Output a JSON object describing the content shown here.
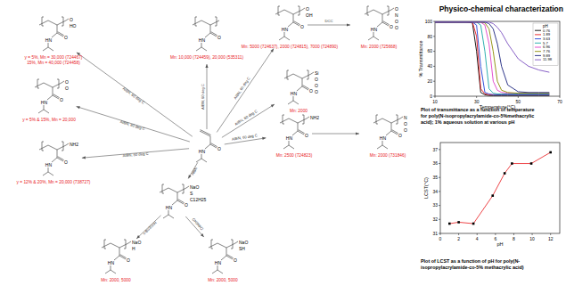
{
  "header": {
    "title": "Physico-chemical characterization"
  },
  "diagram": {
    "nodes": [
      {
        "atoms": [
          "HN",
          "O"
        ]
      },
      {
        "atoms": [
          "HN",
          "O"
        ],
        "labels": [
          "Mn: 10,000 (724459), 20,000 (535311)"
        ]
      },
      {
        "atoms": [
          "HN",
          "O",
          "O",
          "OH"
        ],
        "labels": [
          "Mn: 5000 (724637), 2000 (724815), 7000 (724890)"
        ]
      },
      {
        "atoms": [
          "HN",
          "O",
          "O",
          "N",
          "O",
          "O"
        ],
        "labels": [
          "Mn: 2000 (725668)"
        ]
      },
      {
        "atoms": [
          "HN",
          "O",
          "Si",
          "O",
          "O",
          "O"
        ],
        "labels": [
          "Mn: 2000"
        ]
      },
      {
        "atoms": [
          "HN",
          "O",
          "NH2"
        ],
        "labels": [
          "Mn: 2500 (724823)"
        ]
      },
      {
        "atoms": [
          "HN",
          "O",
          "N",
          "O",
          "O"
        ],
        "labels": [
          "Mn: 2000 (731846)"
        ]
      },
      {
        "atoms": [
          "HN",
          "O",
          "NaO",
          "S",
          "C12H25"
        ]
      },
      {
        "atoms": [
          "HN",
          "O",
          "NaO",
          "H"
        ],
        "labels": [
          "Mn: 2000, 5000"
        ]
      },
      {
        "atoms": [
          "HN",
          "O",
          "NaO",
          "SH"
        ],
        "labels": [
          "Mn: 2000, 5000"
        ]
      },
      {
        "atoms": [
          "HN",
          "O",
          "NH2"
        ],
        "labels": [
          "y = 12% & 20%, Mn = 20,000 (738727)"
        ]
      },
      {
        "atoms": [
          "HN",
          "O",
          "O",
          "O"
        ],
        "labels": [
          "y = 5% & 15%, Mn = 20,000"
        ]
      },
      {
        "atoms": [
          "HN",
          "O",
          "O",
          "HO"
        ],
        "labels": [
          "y = 5%, Mn = 30,000 (724467)",
          "15%, Mn = 40,000 (724458)"
        ]
      }
    ],
    "edges": [
      {
        "from": 0,
        "to": 1,
        "label": "AIBN, 60 deg C"
      },
      {
        "from": 0,
        "to": 2,
        "label": "AIBN, 60 deg C"
      },
      {
        "from": 2,
        "to": 3,
        "label": "DCC"
      },
      {
        "from": 0,
        "to": 4,
        "label": "AIBN, 60 deg C"
      },
      {
        "from": 0,
        "to": 5,
        "label": "AIBN, 60 deg C"
      },
      {
        "from": 5,
        "to": 6
      },
      {
        "from": 0,
        "to": 7,
        "label": "AIBN"
      },
      {
        "from": 7,
        "to": 8,
        "label": "n-Bu3SnH"
      },
      {
        "from": 7,
        "to": 9,
        "label": "CH3NH2"
      },
      {
        "from": 0,
        "to": 10,
        "label": "AIBN, 60 deg C"
      },
      {
        "from": 0,
        "to": 11,
        "label": "AIBN, 60 deg C"
      },
      {
        "from": 0,
        "to": 12,
        "label": "AIBN, 60 deg C"
      }
    ]
  },
  "chart_data": [
    {
      "type": "line",
      "caption": [
        "Plot of transmittance as a function of temperature",
        "for poly(N-isopropylacrylamide-co-5%methacrylic",
        "acid); 1% aqueous solution at various pH"
      ],
      "x_label": "Temperature(°C)",
      "y_label": "% Transmittance",
      "x": [
        10,
        20,
        25,
        28,
        30,
        32,
        34,
        36,
        38,
        40,
        42,
        45,
        50,
        55,
        60,
        65
      ],
      "series": [
        {
          "name": "0.76",
          "color": "#000000",
          "values": [
            99,
            99,
            99,
            98,
            60,
            5,
            2,
            1,
            1,
            1,
            1,
            1,
            1,
            1,
            1,
            1
          ]
        },
        {
          "name": "1.89",
          "color": "#e8161b",
          "values": [
            99,
            99,
            99,
            99,
            80,
            10,
            3,
            2,
            2,
            2,
            2,
            2,
            2,
            2,
            2,
            2
          ]
        },
        {
          "name": "3.63",
          "color": "#1f3fd6",
          "values": [
            99,
            99,
            99,
            99,
            95,
            40,
            5,
            3,
            2,
            2,
            2,
            2,
            2,
            2,
            2,
            2
          ]
        },
        {
          "name": "5.7",
          "color": "#19a7a7",
          "values": [
            99,
            99,
            99,
            99,
            99,
            95,
            60,
            10,
            4,
            3,
            3,
            3,
            3,
            3,
            3,
            3
          ]
        },
        {
          "name": "6.96",
          "color": "#e03cc8",
          "values": [
            99,
            99,
            99,
            99,
            99,
            99,
            95,
            70,
            20,
            8,
            5,
            4,
            4,
            4,
            4,
            4
          ]
        },
        {
          "name": "7.76",
          "color": "#8a8a00",
          "values": [
            99,
            99,
            99,
            99,
            99,
            99,
            98,
            90,
            60,
            20,
            8,
            5,
            4,
            4,
            4,
            4
          ]
        },
        {
          "name": "9.89",
          "color": "#1a237e",
          "values": [
            99,
            99,
            99,
            99,
            99,
            99,
            99,
            97,
            90,
            70,
            40,
            15,
            6,
            5,
            5,
            5
          ]
        },
        {
          "name": "11.98",
          "color": "#7a4fbf",
          "values": [
            99,
            99,
            99,
            99,
            99,
            99,
            99,
            99,
            97,
            92,
            85,
            70,
            50,
            40,
            35,
            32
          ]
        }
      ],
      "xlim": [
        10,
        70
      ],
      "xticks": [
        10,
        30,
        50,
        70
      ],
      "ylim": [
        0,
        100
      ],
      "yticks": [
        0,
        20,
        40,
        60,
        80,
        100
      ],
      "legend": "upper right",
      "legend_title": "pH",
      "grid": false
    },
    {
      "type": "line",
      "caption": [
        "Plot of LCST as a function of pH for poly(N-",
        "isopropylacrylamide-co-5% methacrylic acid)"
      ],
      "x_label": "pH",
      "y_label": "LCST(°C)",
      "x": [
        1,
        2,
        3.6,
        5.7,
        7,
        7.8,
        9.9,
        12
      ],
      "values": [
        31.7,
        31.8,
        31.7,
        33.7,
        35.3,
        36.0,
        36.0,
        36.8
      ],
      "color": "#e8161b",
      "marker": "square",
      "line_style": "solid",
      "xlim": [
        0,
        13
      ],
      "xticks": [
        0,
        2,
        4,
        6,
        8,
        10,
        12
      ],
      "ylim": [
        31,
        37.5
      ],
      "yticks": [
        31,
        32,
        33,
        34,
        35,
        36,
        37
      ],
      "grid": false
    }
  ]
}
